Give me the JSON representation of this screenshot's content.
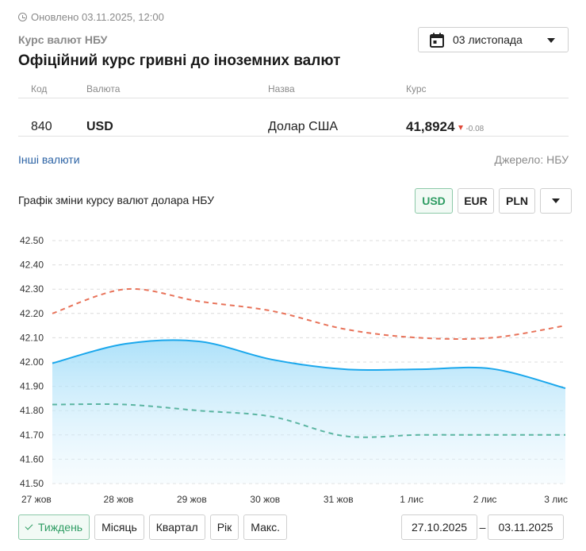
{
  "header": {
    "updated": "Оновлено 03.11.2025, 12:00",
    "subtitle": "Курс валют НБУ",
    "title": "Офіційний курс гривні до іноземних валют",
    "date_select": "03 листопада"
  },
  "table": {
    "columns": [
      "Код",
      "Валюта",
      "Назва",
      "Курс"
    ],
    "rows": [
      {
        "code": "840",
        "currency": "USD",
        "name": "Долар США",
        "rate": "41,8924",
        "delta": "-0.08"
      }
    ]
  },
  "links": {
    "other_currencies": "Інші валюти",
    "source": "Джерело: НБУ"
  },
  "chart_section": {
    "title": "Графік зміни курсу валют долара НБУ",
    "currency_tabs": [
      "USD",
      "EUR",
      "PLN"
    ],
    "active_currency": "USD"
  },
  "periods": {
    "tabs": [
      "Тиждень",
      "Місяць",
      "Квартал",
      "Рік",
      "Макс."
    ],
    "active": "Тиждень",
    "date_from": "27.10.2025",
    "date_to": "03.11.2025",
    "separator": "–"
  },
  "colors": {
    "main_line": "#1aa7ec",
    "upper_dashed": "#e8735a",
    "lower_dashed": "#5bb5a2",
    "accent_green": "#2e9c63"
  },
  "chart_data": {
    "type": "area",
    "x": [
      "27 жов",
      "28 жов",
      "29 жов",
      "30 жов",
      "31 жов",
      "1 лис",
      "2 лис",
      "3 лис"
    ],
    "series": [
      {
        "values": [
          41.995,
          42.075,
          42.085,
          42.01,
          41.97,
          41.97,
          41.972,
          41.892
        ],
        "style": "solid-area"
      },
      {
        "values": [
          42.2,
          42.3,
          42.25,
          42.21,
          42.135,
          42.1,
          42.1,
          42.15
        ],
        "style": "dashed"
      },
      {
        "values": [
          41.825,
          41.825,
          41.8,
          41.775,
          41.695,
          41.7,
          41.7,
          41.7
        ],
        "style": "dashed"
      }
    ],
    "y_ticks": [
      "42.50",
      "42.40",
      "42.30",
      "42.20",
      "42.10",
      "42.00",
      "41.90",
      "41.80",
      "41.70",
      "41.60",
      "41.50"
    ],
    "ylim": [
      41.5,
      42.5
    ],
    "grid": true
  }
}
